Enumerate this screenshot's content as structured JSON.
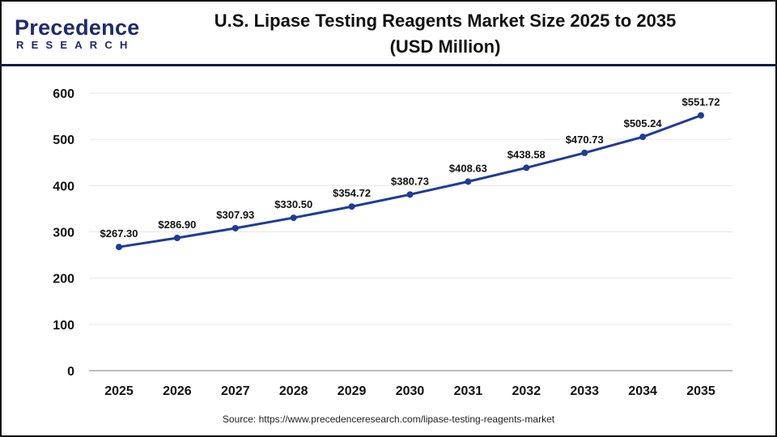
{
  "logo": {
    "text_main": "Precedence",
    "text_sub": "RESEARCH"
  },
  "title_line1": "U.S. Lipase Testing Reagents Market Size 2025 to 2035",
  "title_line2": "(USD Million)",
  "source": "Source: https://www.precedenceresearch.com/lipase-testing-reagents-market",
  "colors": {
    "line": "#1f3b96",
    "grid": "#e6e6e6",
    "axis": "#bdbdbd",
    "header_rule": "#0f1a45"
  },
  "chart_data": {
    "type": "line",
    "title": "U.S. Lipase Testing Reagents Market Size 2025 to 2035 (USD Million)",
    "categories": [
      "2025",
      "2026",
      "2027",
      "2028",
      "2029",
      "2030",
      "2031",
      "2032",
      "2033",
      "2034",
      "2035"
    ],
    "values": [
      267.3,
      286.9,
      307.93,
      330.5,
      354.72,
      380.73,
      408.63,
      438.58,
      470.73,
      505.24,
      551.72
    ],
    "data_labels": [
      "$267.30",
      "$286.90",
      "$307.93",
      "$330.50",
      "$354.72",
      "$380.73",
      "$408.63",
      "$438.58",
      "$470.73",
      "$505.24",
      "$551.72"
    ],
    "ylim": [
      0,
      600
    ],
    "yticks": [
      0,
      100,
      200,
      300,
      400,
      500,
      600
    ],
    "grid": true,
    "legend": "none"
  }
}
